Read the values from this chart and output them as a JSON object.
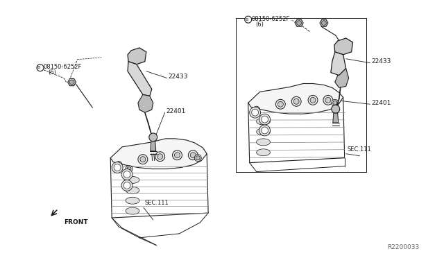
{
  "background_color": "#ffffff",
  "line_color": "#1a1a1a",
  "fig_width": 6.4,
  "fig_height": 3.72,
  "dpi": 100,
  "labels": {
    "part_08150_left": "B08150-6252F\n  (6)",
    "part_08150_right": "B08150-6252F\n  (6)",
    "part_22433_left": "22433",
    "part_22433_right": "22433",
    "part_22401_left": "22401",
    "part_22401_right": "22401",
    "sec111_left": "SEC.111",
    "sec111_right": "SEC.111",
    "front": "FRONT",
    "ref_code": "R2200033"
  }
}
